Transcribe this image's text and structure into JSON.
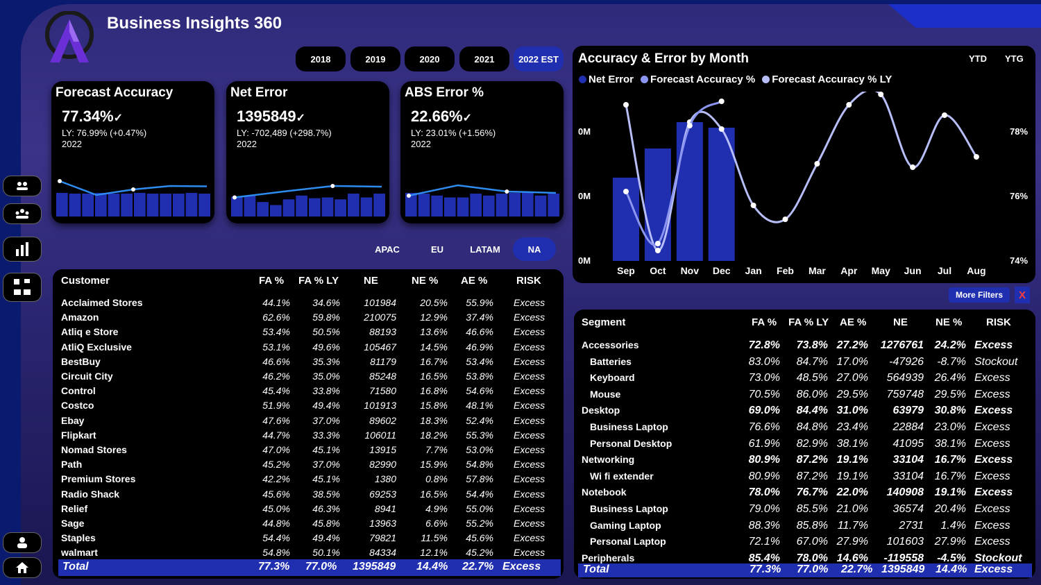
{
  "app": {
    "title": "Business Insights 360"
  },
  "sidebar": {
    "buttons": [
      "finance-view",
      "sales-view",
      "marketing-view",
      "supply-chain-view",
      "executive-view",
      "home"
    ]
  },
  "years": [
    "2018",
    "2019",
    "2020",
    "2021",
    "2022 EST"
  ],
  "selected_year": "2022 EST",
  "kpis": [
    {
      "title": "Forecast Accuracy",
      "value": "77.34%",
      "ly": "LY: 76.99% (+0.47%)",
      "year": "2022",
      "trend": [
        0.72,
        0.32,
        0.48,
        0.58,
        0.57
      ],
      "bars": [
        0.62,
        0.6,
        0.6,
        0.62,
        0.6,
        0.6,
        0.62,
        0.6,
        0.6,
        0.6,
        0.62,
        0.6
      ]
    },
    {
      "title": "Net Error",
      "value": "1395849",
      "ly": "LY: -702,489 (+298.7%)",
      "year": "2022",
      "trend": [
        0.25,
        0.42,
        0.58,
        0.56
      ],
      "bars": [
        0.52,
        0.55,
        0.38,
        0.3,
        0.45,
        0.55,
        0.48,
        0.5,
        0.45,
        0.6,
        0.5,
        0.6
      ]
    },
    {
      "title": "ABS Error %",
      "value": "22.66%",
      "ly": "LY: 23.01% (+1.56%)",
      "year": "2022",
      "trend": [
        0.3,
        0.6,
        0.42,
        0.38
      ],
      "bars": [
        0.62,
        0.6,
        0.55,
        0.5,
        0.5,
        0.6,
        0.55,
        0.6,
        0.62,
        0.65,
        0.55,
        0.6
      ]
    }
  ],
  "regions": [
    "APAC",
    "EU",
    "LATAM",
    "NA"
  ],
  "selected_region": "NA",
  "customer_table": {
    "headers": [
      "Customer",
      "FA %",
      "FA % LY",
      "NE",
      "NE %",
      "AE %",
      "RISK"
    ],
    "rows": [
      [
        "Acclaimed Stores",
        "44.1%",
        "34.6%",
        "101984",
        "20.5%",
        "55.9%",
        "Excess"
      ],
      [
        "Amazon",
        "62.6%",
        "59.8%",
        "210075",
        "12.9%",
        "37.4%",
        "Excess"
      ],
      [
        "Atliq e Store",
        "53.4%",
        "50.5%",
        "88193",
        "13.6%",
        "46.6%",
        "Excess"
      ],
      [
        "AtliQ Exclusive",
        "53.1%",
        "49.6%",
        "105467",
        "14.5%",
        "46.9%",
        "Excess"
      ],
      [
        "BestBuy",
        "46.6%",
        "35.3%",
        "81179",
        "16.7%",
        "53.4%",
        "Excess"
      ],
      [
        "Circuit City",
        "46.2%",
        "35.0%",
        "85248",
        "16.5%",
        "53.8%",
        "Excess"
      ],
      [
        "Control",
        "45.4%",
        "33.8%",
        "71580",
        "16.8%",
        "54.6%",
        "Excess"
      ],
      [
        "Costco",
        "51.9%",
        "49.4%",
        "101913",
        "15.8%",
        "48.1%",
        "Excess"
      ],
      [
        "Ebay",
        "47.6%",
        "37.0%",
        "89602",
        "18.3%",
        "52.4%",
        "Excess"
      ],
      [
        "Flipkart",
        "44.7%",
        "33.3%",
        "106011",
        "18.2%",
        "55.3%",
        "Excess"
      ],
      [
        "Nomad Stores",
        "47.0%",
        "45.1%",
        "13915",
        "7.7%",
        "53.0%",
        "Excess"
      ],
      [
        "Path",
        "45.2%",
        "37.0%",
        "82990",
        "15.9%",
        "54.8%",
        "Excess"
      ],
      [
        "Premium Stores",
        "42.2%",
        "45.1%",
        "1380",
        "0.8%",
        "57.8%",
        "Excess"
      ],
      [
        "Radio Shack",
        "45.6%",
        "38.5%",
        "69253",
        "16.5%",
        "54.4%",
        "Excess"
      ],
      [
        "Relief",
        "45.0%",
        "46.3%",
        "8941",
        "4.9%",
        "55.0%",
        "Excess"
      ],
      [
        "Sage",
        "44.8%",
        "45.8%",
        "13963",
        "6.6%",
        "55.2%",
        "Excess"
      ],
      [
        "Staples",
        "54.4%",
        "49.4%",
        "79821",
        "11.5%",
        "45.6%",
        "Excess"
      ],
      [
        "walmart",
        "54.8%",
        "50.1%",
        "84334",
        "12.1%",
        "45.2%",
        "Excess"
      ]
    ],
    "total": [
      "Total",
      "77.3%",
      "77.0%",
      "1395849",
      "14.4%",
      "22.7%",
      "Excess"
    ]
  },
  "accuracy_chart": {
    "title": "Accuracy & Error by Month",
    "toggles": [
      "YTD",
      "YTG"
    ],
    "legend": [
      {
        "label": "Net Error",
        "color": "#1f2fb0"
      },
      {
        "label": "Forecast Accuracy %",
        "color": "#8c96f0"
      },
      {
        "label": "Forecast Accuracy % LY",
        "color": "#b7bdf7"
      }
    ]
  },
  "chart_data": {
    "type": "bar",
    "categories": [
      "Sep",
      "Oct",
      "Nov",
      "Dec",
      "Jan",
      "Feb",
      "Mar",
      "Apr",
      "May",
      "Jun",
      "Jul",
      "Aug"
    ],
    "left_ticks": [
      "0M",
      "0M",
      "0M"
    ],
    "right_ticks": [
      "78%",
      "76%",
      "74%"
    ],
    "ylim_right": [
      74,
      78
    ],
    "series": [
      {
        "name": "Net Error",
        "type": "bar",
        "values": [
          0.6,
          0.81,
          1.0,
          0.96,
          null,
          null,
          null,
          null,
          null,
          null,
          null,
          null
        ]
      },
      {
        "name": "Forecast Accuracy %",
        "type": "line",
        "values": [
          75.8,
          74.3,
          77.7,
          78.4,
          null,
          null,
          null,
          null,
          null,
          null,
          null,
          null
        ]
      },
      {
        "name": "Forecast Accuracy % LY",
        "type": "line",
        "values": [
          78.3,
          74.1,
          77.8,
          77.6,
          75.4,
          75.0,
          76.6,
          78.3,
          78.6,
          76.5,
          78.0,
          76.8
        ]
      }
    ]
  },
  "filters": {
    "more_label": "More Filters",
    "close_label": "X"
  },
  "segment_table": {
    "headers": [
      "Segment",
      "FA %",
      "FA % LY",
      "AE %",
      "NE",
      "NE %",
      "RISK"
    ],
    "rows": [
      {
        "level": 0,
        "cells": [
          "Accessories",
          "72.8%",
          "73.8%",
          "27.2%",
          "1276761",
          "24.2%",
          "Excess"
        ]
      },
      {
        "level": 1,
        "cells": [
          "Batteries",
          "83.0%",
          "84.7%",
          "17.0%",
          "-47926",
          "-8.7%",
          "Stockout"
        ]
      },
      {
        "level": 1,
        "cells": [
          "Keyboard",
          "73.0%",
          "48.5%",
          "27.0%",
          "564939",
          "26.4%",
          "Excess"
        ]
      },
      {
        "level": 1,
        "cells": [
          "Mouse",
          "70.5%",
          "86.0%",
          "29.5%",
          "759748",
          "29.5%",
          "Excess"
        ]
      },
      {
        "level": 0,
        "cells": [
          "Desktop",
          "69.0%",
          "84.4%",
          "31.0%",
          "63979",
          "30.8%",
          "Excess"
        ]
      },
      {
        "level": 1,
        "cells": [
          "Business Laptop",
          "76.6%",
          "84.8%",
          "23.4%",
          "22884",
          "23.0%",
          "Excess"
        ]
      },
      {
        "level": 1,
        "cells": [
          "Personal Desktop",
          "61.9%",
          "82.9%",
          "38.1%",
          "41095",
          "38.1%",
          "Excess"
        ]
      },
      {
        "level": 0,
        "cells": [
          "Networking",
          "80.9%",
          "87.2%",
          "19.1%",
          "33104",
          "16.7%",
          "Excess"
        ]
      },
      {
        "level": 1,
        "cells": [
          "Wi fi extender",
          "80.9%",
          "87.2%",
          "19.1%",
          "33104",
          "16.7%",
          "Excess"
        ]
      },
      {
        "level": 0,
        "cells": [
          "Notebook",
          "78.0%",
          "76.7%",
          "22.0%",
          "140908",
          "19.1%",
          "Excess"
        ]
      },
      {
        "level": 1,
        "cells": [
          "Business Laptop",
          "79.0%",
          "85.5%",
          "21.0%",
          "36574",
          "20.4%",
          "Excess"
        ]
      },
      {
        "level": 1,
        "cells": [
          "Gaming Laptop",
          "88.3%",
          "85.8%",
          "11.7%",
          "2731",
          "1.4%",
          "Excess"
        ]
      },
      {
        "level": 1,
        "cells": [
          "Personal Laptop",
          "72.1%",
          "67.0%",
          "27.9%",
          "101603",
          "27.9%",
          "Excess"
        ]
      },
      {
        "level": 0,
        "cells": [
          "Peripherals",
          "85.4%",
          "78.0%",
          "14.6%",
          "-119558",
          "-4.5%",
          "Stockout"
        ]
      }
    ],
    "total": [
      "Total",
      "77.3%",
      "77.0%",
      "22.7%",
      "1395849",
      "14.4%",
      "Excess"
    ]
  }
}
